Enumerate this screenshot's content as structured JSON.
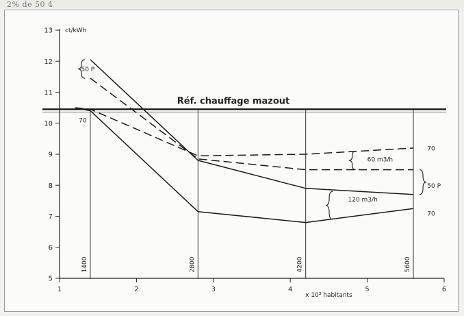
{
  "document": {
    "top_text": "2% de 50 4"
  },
  "chart_data": {
    "type": "line",
    "title": "Réf. chauffage mazout",
    "ylabel": "ct/kWh",
    "xlabel": "x 10³ habitants",
    "ylim": [
      5,
      13
    ],
    "xlim": [
      1,
      6
    ],
    "yticks": [
      "5",
      "6",
      "7",
      "8",
      "9",
      "10",
      "11",
      "12",
      "13"
    ],
    "xticks": [
      "1",
      "2",
      "3",
      "4",
      "5",
      "6"
    ],
    "reference": {
      "name": "Réf. chauffage mazout",
      "y": 10.45
    },
    "vertical_markers": [
      {
        "x": 1.4,
        "label": "1400"
      },
      {
        "x": 2.8,
        "label": "2800"
      },
      {
        "x": 4.2,
        "label": "4200"
      },
      {
        "x": 5.6,
        "label": "5600"
      }
    ],
    "series": [
      {
        "style": "solid",
        "x": [
          1.4,
          2.8,
          4.2,
          5.6
        ],
        "y": [
          12.05,
          8.8,
          7.9,
          7.7
        ]
      },
      {
        "style": "dashed",
        "x": [
          1.4,
          2.8,
          4.2,
          5.6
        ],
        "y": [
          11.45,
          8.85,
          8.5,
          8.5
        ]
      },
      {
        "style": "dashed",
        "x": [
          1.2,
          1.4,
          2.8,
          4.2,
          5.6
        ],
        "y": [
          10.5,
          10.45,
          8.95,
          9.0,
          9.2
        ]
      },
      {
        "style": "solid",
        "x": [
          1.2,
          1.4,
          2.8,
          4.2,
          5.6
        ],
        "y": [
          10.5,
          10.4,
          7.15,
          6.8,
          7.25
        ]
      }
    ],
    "annotations": [
      {
        "text": "50 P",
        "x": 1.28,
        "y": 11.75
      },
      {
        "text": "70",
        "x": 1.25,
        "y": 10.1
      },
      {
        "text": "60 m3/h",
        "x": 5.0,
        "y": 8.85
      },
      {
        "text": "70",
        "x": 5.78,
        "y": 9.2
      },
      {
        "text": "50 P",
        "x": 5.78,
        "y": 8.0
      },
      {
        "text": "120 m3/h",
        "x": 4.75,
        "y": 7.55
      },
      {
        "text": "70",
        "x": 5.78,
        "y": 7.1
      }
    ],
    "braces": [
      {
        "x": 1.33,
        "y1": 11.45,
        "y2": 12.05,
        "side": "left"
      },
      {
        "x": 4.85,
        "y1": 8.5,
        "y2": 9.1,
        "side": "left"
      },
      {
        "x": 5.68,
        "y1": 7.7,
        "y2": 8.5,
        "side": "right"
      },
      {
        "x": 4.55,
        "y1": 6.9,
        "y2": 7.8,
        "side": "left"
      }
    ]
  }
}
